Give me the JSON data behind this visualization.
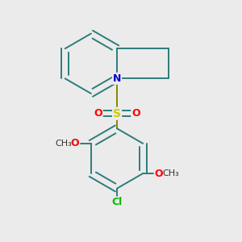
{
  "bg_color": "#ebebeb",
  "bond_color": "#2e7b7b",
  "bond_width": 1.4,
  "atom_colors": {
    "N": "#0000cc",
    "S": "#cccc00",
    "O": "#ff0000",
    "Cl": "#00bb00",
    "C": "#2e7b7b"
  },
  "font_size": 9,
  "fig_size": [
    3.0,
    3.0
  ],
  "dpi": 100
}
